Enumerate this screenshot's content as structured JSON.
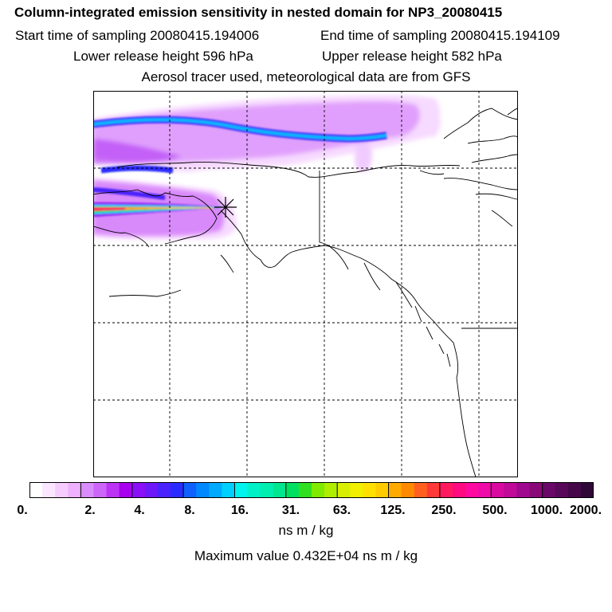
{
  "header": {
    "title": "Column-integrated emission sensitivity in nested domain for NP3_20080415",
    "start_time": "Start time of sampling 20080415.194006",
    "end_time": "End time of sampling 20080415.194109",
    "lower_height": "Lower release height  596 hPa",
    "upper_height": "Upper release height  582 hPa",
    "tracer_info": "Aerosol tracer used, meteorological data are from GFS"
  },
  "map": {
    "background": "#ffffff",
    "coastline_color": "#000000",
    "gridlines": "dashed",
    "release_marker": "star-cross"
  },
  "colorbar": {
    "tick_labels": [
      "0.",
      "2.",
      "4.",
      "8.",
      "16.",
      "31.",
      "63.",
      "125.",
      "250.",
      "500.",
      "1000.",
      "2000."
    ],
    "colors": [
      [
        "#ffffff",
        "#fbe6ff",
        "#f6ccff",
        "#efb0fe"
      ],
      [
        "#d98cfb",
        "#cc66f8",
        "#bb33f3",
        "#a800ee"
      ],
      [
        "#8a10f5",
        "#6c18f8",
        "#4a22fb",
        "#2a2cff"
      ],
      [
        "#1060ff",
        "#0088ff",
        "#00aaff",
        "#00d0ff"
      ],
      [
        "#00f4ee",
        "#00f0c8",
        "#00eeb0",
        "#00e690"
      ],
      [
        "#00e060",
        "#30e020",
        "#80ea00",
        "#b0ee00"
      ],
      [
        "#d8f000",
        "#f0f000",
        "#ffe000",
        "#ffcc00"
      ],
      [
        "#ffaa00",
        "#ff8a00",
        "#ff6020",
        "#ff3838"
      ],
      [
        "#ff1a60",
        "#ff0a80",
        "#ff0aa0",
        "#f00aa8"
      ],
      [
        "#d80aa0",
        "#c00a98",
        "#a00890",
        "#880878"
      ],
      [
        "#6a0868",
        "#580858",
        "#440848",
        "#300838"
      ]
    ],
    "unit": "ns m / kg"
  },
  "footer": {
    "max_value": "Maximum value  0.432E+04 ns m / kg"
  }
}
